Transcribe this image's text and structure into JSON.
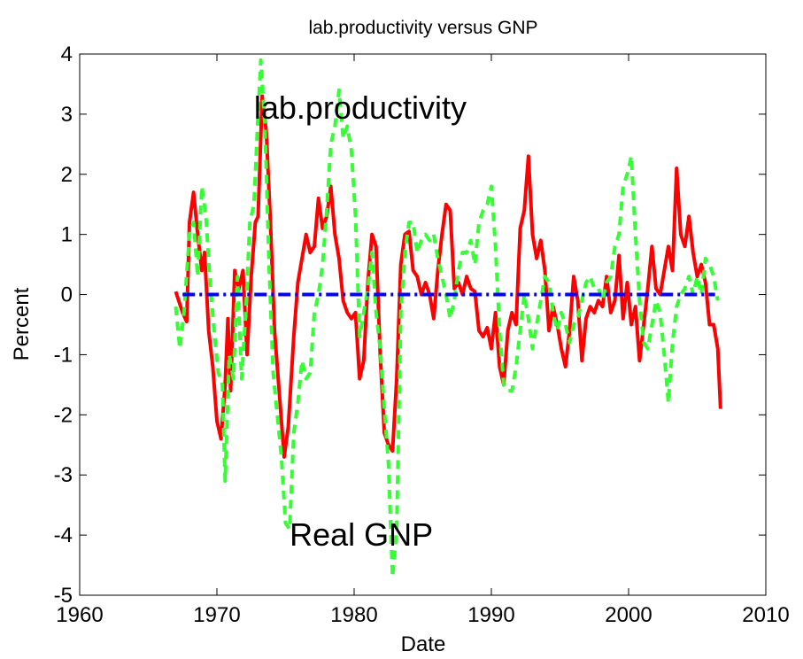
{
  "chart_data": {
    "type": "line",
    "title": "lab.productivity versus GNP",
    "xlabel": "Date",
    "ylabel": "Percent",
    "xlim": [
      1960,
      2010
    ],
    "xticks": [
      1960,
      1970,
      1980,
      1990,
      2000,
      2010
    ],
    "ylim": [
      -5,
      4
    ],
    "yticks": [
      -5,
      -4,
      -3,
      -2,
      -1,
      0,
      1,
      2,
      3,
      4
    ],
    "grid": false,
    "annotations": [
      {
        "text": "lab.productivity",
        "x": 1972.7,
        "y": 3.1
      },
      {
        "text": "Real GNP",
        "x": 1975.3,
        "y": -4.0
      }
    ],
    "series": [
      {
        "color": "#ff0000",
        "dash": "solid",
        "x": [
          1967.0,
          1967.5,
          1967.8,
          1968.0,
          1968.3,
          1968.6,
          1968.9,
          1969.1,
          1969.4,
          1969.7,
          1970.0,
          1970.3,
          1970.6,
          1970.8,
          1971.0,
          1971.3,
          1971.6,
          1971.9,
          1972.2,
          1972.5,
          1972.8,
          1973.0,
          1973.3,
          1973.6,
          1973.9,
          1974.2,
          1974.6,
          1974.9,
          1975.2,
          1975.6,
          1975.9,
          1976.2,
          1976.5,
          1976.8,
          1977.1,
          1977.4,
          1977.7,
          1978.0,
          1978.3,
          1978.6,
          1978.9,
          1979.2,
          1979.5,
          1979.8,
          1980.1,
          1980.4,
          1980.7,
          1981.0,
          1981.3,
          1981.6,
          1981.9,
          1982.2,
          1982.5,
          1982.8,
          1983.1,
          1983.4,
          1983.7,
          1984.0,
          1984.3,
          1984.6,
          1984.9,
          1985.2,
          1985.5,
          1985.8,
          1986.1,
          1986.4,
          1986.7,
          1987.0,
          1987.3,
          1987.6,
          1987.9,
          1988.2,
          1988.5,
          1988.8,
          1989.1,
          1989.4,
          1989.7,
          1990.0,
          1990.3,
          1990.6,
          1990.9,
          1991.2,
          1991.5,
          1991.8,
          1992.1,
          1992.4,
          1992.7,
          1993.0,
          1993.3,
          1993.6,
          1993.9,
          1994.2,
          1994.5,
          1994.8,
          1995.1,
          1995.4,
          1995.7,
          1996.0,
          1996.3,
          1996.6,
          1996.9,
          1997.2,
          1997.5,
          1997.8,
          1998.1,
          1998.4,
          1998.7,
          1999.0,
          1999.3,
          1999.6,
          1999.9,
          2000.2,
          2000.5,
          2000.8,
          2001.1,
          2001.4,
          2001.7,
          2002.0,
          2002.3,
          2002.6,
          2002.9,
          2003.2,
          2003.5,
          2003.8,
          2004.1,
          2004.4,
          2004.7,
          2005.0,
          2005.3,
          2005.6,
          2005.9,
          2006.2,
          2006.5,
          2006.7
        ],
        "values": [
          0.05,
          -0.3,
          -0.45,
          1.2,
          1.7,
          1.0,
          0.4,
          0.7,
          -0.6,
          -1.2,
          -2.1,
          -2.4,
          -1.5,
          -0.4,
          -1.6,
          0.4,
          0.1,
          0.4,
          -1.0,
          0.3,
          1.2,
          1.3,
          3.3,
          2.7,
          1.2,
          -0.6,
          -1.8,
          -2.7,
          -2.2,
          -0.7,
          0.2,
          0.6,
          1.0,
          0.7,
          0.8,
          1.6,
          1.1,
          1.3,
          1.8,
          1.0,
          0.6,
          -0.1,
          -0.3,
          -0.4,
          -0.3,
          -1.4,
          -1.1,
          0.2,
          1.0,
          0.8,
          -1.0,
          -2.3,
          -2.5,
          -2.6,
          -1.4,
          0.5,
          1.0,
          1.05,
          0.4,
          0.3,
          0.0,
          0.2,
          0.0,
          -0.4,
          0.4,
          1.0,
          1.5,
          1.4,
          0.1,
          0.2,
          0.0,
          0.3,
          0.1,
          0.05,
          -0.6,
          -0.7,
          -0.55,
          -0.9,
          -0.3,
          -1.2,
          -1.5,
          -0.6,
          -0.3,
          -0.5,
          1.1,
          1.4,
          2.3,
          1.0,
          0.6,
          0.9,
          0.4,
          -0.6,
          -0.2,
          -0.5,
          -0.9,
          -1.2,
          -0.6,
          0.3,
          -0.1,
          -1.1,
          -0.4,
          -0.2,
          -0.3,
          -0.1,
          -0.2,
          0.3,
          -0.3,
          -0.1,
          0.65,
          -0.4,
          0.2,
          -0.5,
          -0.2,
          -1.1,
          -0.5,
          0.1,
          0.8,
          0.1,
          0.0,
          0.4,
          0.8,
          0.4,
          2.1,
          1.0,
          0.8,
          1.3,
          0.7,
          0.3,
          0.5,
          0.2,
          -0.5,
          -0.5,
          -0.9,
          -1.9
        ]
      },
      {
        "color": "#33ff33",
        "dash": "dashed",
        "x": [
          1967.0,
          1967.3,
          1967.6,
          1968.0,
          1968.3,
          1968.6,
          1968.9,
          1969.2,
          1969.5,
          1969.8,
          1970.1,
          1970.4,
          1970.6,
          1970.9,
          1971.2,
          1971.5,
          1971.8,
          1972.1,
          1972.4,
          1972.7,
          1973.0,
          1973.2,
          1973.5,
          1973.8,
          1974.1,
          1974.4,
          1974.7,
          1975.0,
          1975.3,
          1975.6,
          1975.9,
          1976.2,
          1976.5,
          1976.8,
          1977.1,
          1977.4,
          1977.7,
          1978.0,
          1978.3,
          1978.6,
          1978.9,
          1979.2,
          1979.5,
          1979.8,
          1980.1,
          1980.4,
          1980.7,
          1981.0,
          1981.3,
          1981.6,
          1981.9,
          1982.2,
          1982.5,
          1982.8,
          1983.1,
          1983.4,
          1983.7,
          1984.0,
          1984.3,
          1984.6,
          1984.9,
          1985.2,
          1985.5,
          1985.8,
          1986.1,
          1986.4,
          1986.7,
          1987.0,
          1987.3,
          1987.6,
          1987.9,
          1988.2,
          1988.5,
          1988.8,
          1989.1,
          1989.4,
          1989.7,
          1990.0,
          1990.3,
          1990.6,
          1990.9,
          1991.2,
          1991.5,
          1991.8,
          1992.1,
          1992.4,
          1992.7,
          1993.0,
          1993.3,
          1993.6,
          1993.9,
          1994.2,
          1994.5,
          1994.8,
          1995.1,
          1995.4,
          1995.7,
          1996.0,
          1996.3,
          1996.6,
          1996.9,
          1997.2,
          1997.5,
          1997.8,
          1998.1,
          1998.4,
          1998.7,
          1999.0,
          1999.3,
          1999.6,
          1999.9,
          2000.2,
          2000.5,
          2000.8,
          2001.1,
          2001.4,
          2001.7,
          2002.0,
          2002.3,
          2002.6,
          2002.9,
          2003.2,
          2003.5,
          2003.8,
          2004.1,
          2004.4,
          2004.7,
          2005.0,
          2005.3,
          2005.6,
          2005.9,
          2006.2,
          2006.5
        ],
        "values": [
          -0.2,
          -0.9,
          -0.3,
          1.0,
          1.2,
          0.3,
          1.8,
          1.3,
          0.2,
          -0.6,
          -1.3,
          -1.5,
          -3.1,
          -1.0,
          -1.4,
          0.3,
          -1.4,
          -0.3,
          1.2,
          1.5,
          3.0,
          3.9,
          2.8,
          0.5,
          -1.3,
          -2.0,
          -2.7,
          -3.8,
          -3.9,
          -2.3,
          -1.8,
          -1.1,
          -1.4,
          -1.3,
          -0.3,
          0.0,
          0.5,
          1.4,
          2.5,
          2.8,
          3.4,
          2.6,
          2.8,
          2.4,
          1.3,
          -0.7,
          -0.3,
          0.1,
          0.7,
          -0.3,
          -0.9,
          -1.9,
          -2.8,
          -4.7,
          -3.9,
          -0.3,
          0.7,
          1.2,
          1.2,
          0.7,
          0.9,
          1.0,
          0.9,
          1.0,
          0.6,
          0.3,
          0.0,
          -0.4,
          -0.1,
          0.4,
          0.7,
          0.7,
          0.9,
          0.5,
          1.2,
          1.4,
          1.5,
          1.8,
          0.8,
          -0.6,
          -1.5,
          -1.6,
          -1.6,
          -1.2,
          -0.6,
          0.0,
          -0.4,
          -0.9,
          -0.5,
          -0.1,
          0.3,
          0.2,
          -0.3,
          -0.6,
          -0.3,
          -0.5,
          -0.8,
          -0.5,
          -0.4,
          -0.1,
          0.2,
          0.3,
          0.1,
          0.1,
          -0.1,
          0.2,
          0.3,
          0.8,
          1.0,
          1.8,
          2.0,
          2.3,
          1.0,
          -0.1,
          -0.8,
          -0.9,
          -0.5,
          -0.1,
          -0.3,
          -1.0,
          -1.8,
          -0.8,
          -0.2,
          0.0,
          0.1,
          0.3,
          0.0,
          0.3,
          0.0,
          0.6,
          0.5,
          0.3,
          -0.1
        ]
      },
      {
        "color": "#0000ff",
        "dash": "dashdot",
        "x": [
          1967.5,
          2006.3
        ],
        "values": [
          0,
          0
        ]
      }
    ]
  }
}
